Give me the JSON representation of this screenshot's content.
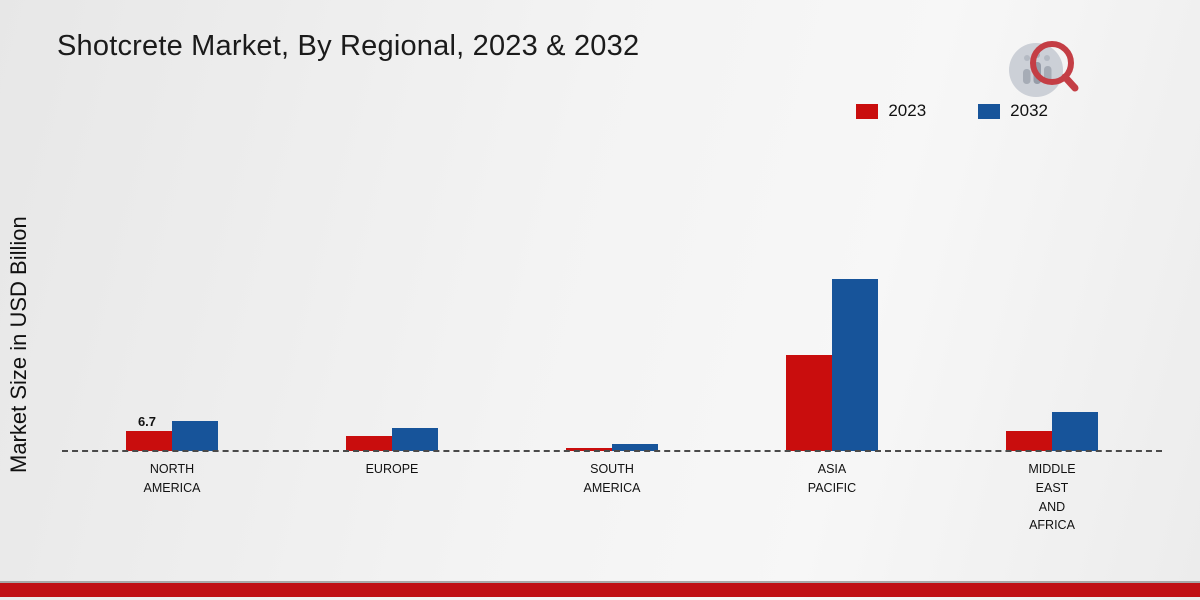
{
  "title": "Shotcrete Market, By Regional, 2023 & 2032",
  "ylabel": "Market Size in USD Billion",
  "legend": [
    {
      "label": "2023",
      "color": "#c90d0d"
    },
    {
      "label": "2032",
      "color": "#17549a"
    }
  ],
  "chart_data": {
    "type": "bar",
    "title": "Shotcrete Market, By Regional, 2023 & 2032",
    "xlabel": "",
    "ylabel": "Market Size in USD Billion",
    "categories": [
      "NORTH AMERICA",
      "EUROPE",
      "SOUTH AMERICA",
      "ASIA PACIFIC",
      "MIDDLE EAST AND AFRICA"
    ],
    "category_label_lines": [
      [
        "NORTH",
        "AMERICA"
      ],
      [
        "EUROPE"
      ],
      [
        "SOUTH",
        "AMERICA"
      ],
      [
        "ASIA",
        "PACIFIC"
      ],
      [
        "MIDDLE",
        "EAST",
        "AND",
        "AFRICA"
      ]
    ],
    "series": [
      {
        "name": "2023",
        "color": "#c90d0d",
        "values": [
          6.7,
          4.9,
          1.0,
          31.9,
          6.6
        ]
      },
      {
        "name": "2032",
        "color": "#17549a",
        "values": [
          10.0,
          7.7,
          2.2,
          57.4,
          13.0
        ]
      }
    ],
    "annotations": [
      {
        "category_index": 0,
        "series_index": 0,
        "text": "6.7"
      }
    ],
    "ylim": [
      0,
      60
    ],
    "grid": false,
    "baseline_style": "dashed",
    "legend_position": "top-right",
    "unit": "USD Billion"
  },
  "footer": {
    "accent_color": "#c01015"
  }
}
